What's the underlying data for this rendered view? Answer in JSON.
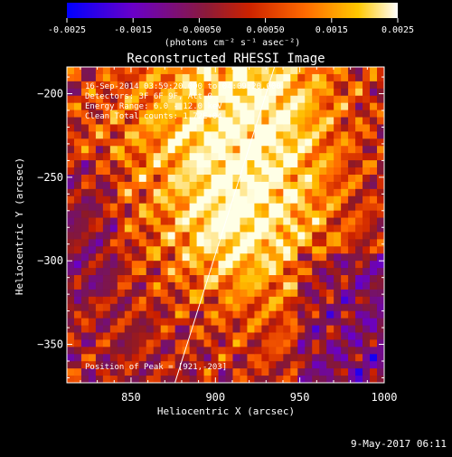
{
  "chart_data": {
    "type": "heatmap",
    "title": "Reconstructed RHESSI Image",
    "xlabel": "Heliocentric X (arcsec)",
    "ylabel": "Heliocentric Y (arcsec)",
    "xlim": [
      812,
      1000
    ],
    "ylim": [
      -373,
      -184
    ],
    "x_ticks": [
      850,
      900,
      950,
      1000
    ],
    "y_ticks": [
      -200,
      -250,
      -300,
      -350
    ],
    "colorbar": {
      "range": [
        -0.0025,
        0.0025
      ],
      "ticks": [
        -0.0025,
        -0.0015,
        -0.0005,
        0.0005,
        0.0015,
        0.0025
      ],
      "tick_labels": [
        "-0.0025",
        "-0.0015",
        "-0.00050",
        "0.00050",
        "0.0015",
        "0.0025"
      ],
      "units": "(photons cm⁻² s⁻¹ asec⁻²)",
      "colors": [
        "#0000ff",
        "#6a00c8",
        "#8b1a3a",
        "#cc2200",
        "#ff6a00",
        "#ffc800",
        "#ffffff"
      ]
    },
    "limb_line": {
      "from": [
        876,
        -373
      ],
      "to": [
        935,
        -184
      ]
    },
    "peak": {
      "x": 921,
      "y": -203
    },
    "annotations": [
      "16-Sep-2014 03:59:20.000 to 04:09:20.000",
      "Detectors: 3F 6F 9F, Att 0",
      "Energy Range: 6.0 - 12.0 keV",
      "Clean     Total counts: 1.72E+04",
      "Position of Peak = [921,-203]"
    ],
    "footer": "9-May-2017 06:11"
  }
}
